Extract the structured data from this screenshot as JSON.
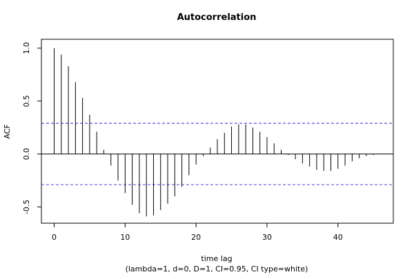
{
  "chart_data": {
    "type": "bar",
    "title": "Autocorrelation",
    "xlabel": "time lag",
    "subtitle": "(lambda=1, d=0, D=1, CI=0.95, CI type=white)",
    "ylabel": "ACF",
    "xlim": [
      -1.8,
      47.8
    ],
    "ylim": [
      -0.654,
      1.084
    ],
    "x_ticks": [
      "0",
      "10",
      "20",
      "30",
      "40"
    ],
    "x_tick_values": [
      0,
      10,
      20,
      30,
      40
    ],
    "y_ticks": [
      "-0.5",
      "0.0",
      "0.5",
      "1.0"
    ],
    "y_tick_values": [
      -0.5,
      0.0,
      0.5,
      1.0
    ],
    "confidence_band": [
      0.29,
      -0.29
    ],
    "confidence_color": "#5555dd",
    "bar_color": "#000000",
    "x": [
      0,
      1,
      2,
      3,
      4,
      5,
      6,
      7,
      8,
      9,
      10,
      11,
      12,
      13,
      14,
      15,
      16,
      17,
      18,
      19,
      20,
      21,
      22,
      23,
      24,
      25,
      26,
      27,
      28,
      29,
      30,
      31,
      32,
      33,
      34,
      35,
      36,
      37,
      38,
      39,
      40,
      41,
      42,
      43,
      44,
      45
    ],
    "values": [
      1.0,
      0.94,
      0.83,
      0.68,
      0.53,
      0.37,
      0.21,
      0.04,
      -0.11,
      -0.25,
      -0.37,
      -0.48,
      -0.56,
      -0.59,
      -0.58,
      -0.53,
      -0.47,
      -0.4,
      -0.31,
      -0.2,
      -0.1,
      -0.02,
      0.06,
      0.14,
      0.2,
      0.26,
      0.28,
      0.28,
      0.25,
      0.21,
      0.16,
      0.1,
      0.04,
      -0.01,
      -0.05,
      -0.09,
      -0.12,
      -0.15,
      -0.16,
      -0.16,
      -0.14,
      -0.11,
      -0.07,
      -0.04,
      -0.02,
      -0.01
    ]
  }
}
